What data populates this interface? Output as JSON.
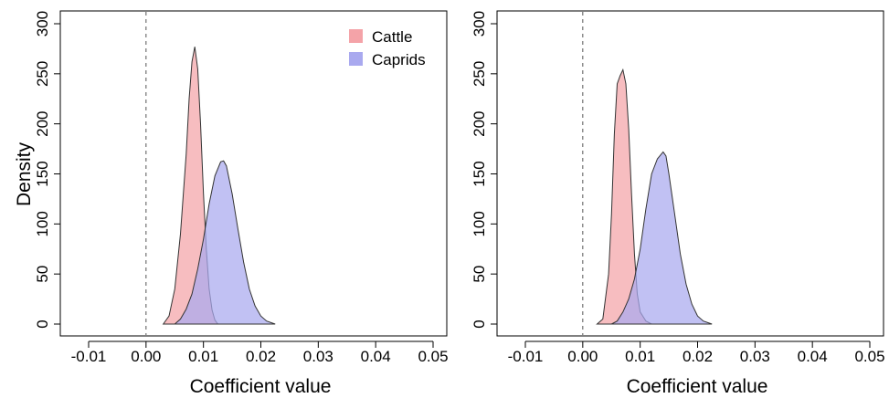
{
  "chart_data": [
    {
      "type": "area",
      "subtype": "density",
      "title": "",
      "xlabel": "Coefficient value",
      "ylabel": "Density",
      "xlim": [
        -0.01,
        0.05
      ],
      "ylim": [
        0,
        300
      ],
      "xticks": [
        "-0.01",
        "0.00",
        "0.01",
        "0.02",
        "0.03",
        "0.04",
        "0.05"
      ],
      "yticks": [
        "0",
        "50",
        "100",
        "150",
        "200",
        "250",
        "300"
      ],
      "reference_line": {
        "x": 0,
        "style": "dashed"
      },
      "grid": false,
      "legend": {
        "position": "top-right",
        "entries": [
          "Cattle",
          "Caprids"
        ]
      },
      "series": [
        {
          "name": "Cattle",
          "color": "#f4a3a8",
          "x": [
            0.003,
            0.004,
            0.005,
            0.006,
            0.007,
            0.0075,
            0.008,
            0.0085,
            0.009,
            0.0095,
            0.01,
            0.0105,
            0.011,
            0.0115,
            0.012,
            0.0125
          ],
          "y": [
            0,
            8,
            35,
            90,
            170,
            225,
            262,
            277,
            255,
            200,
            130,
            75,
            35,
            14,
            4,
            0
          ]
        },
        {
          "name": "Caprids",
          "color": "#a9a9ef",
          "x": [
            0.005,
            0.006,
            0.007,
            0.008,
            0.009,
            0.01,
            0.011,
            0.012,
            0.013,
            0.0135,
            0.014,
            0.015,
            0.016,
            0.017,
            0.018,
            0.019,
            0.02,
            0.021,
            0.0225
          ],
          "y": [
            0,
            5,
            15,
            30,
            55,
            85,
            120,
            148,
            162,
            163,
            158,
            130,
            95,
            62,
            35,
            18,
            8,
            3,
            0
          ]
        }
      ]
    },
    {
      "type": "area",
      "subtype": "density",
      "title": "",
      "xlabel": "Coefficient value",
      "ylabel": "",
      "xlim": [
        -0.01,
        0.05
      ],
      "ylim": [
        0,
        300
      ],
      "xticks": [
        "-0.01",
        "0.00",
        "0.01",
        "0.02",
        "0.03",
        "0.04",
        "0.05"
      ],
      "yticks": [
        "0",
        "50",
        "100",
        "150",
        "200",
        "250",
        "300"
      ],
      "reference_line": {
        "x": 0,
        "style": "dashed"
      },
      "grid": false,
      "legend": null,
      "series": [
        {
          "name": "Cattle",
          "color": "#f4a3a8",
          "x": [
            0.0025,
            0.0035,
            0.0045,
            0.005,
            0.0055,
            0.006,
            0.0065,
            0.007,
            0.0075,
            0.008,
            0.0085,
            0.009,
            0.0095,
            0.01,
            0.011,
            0.012
          ],
          "y": [
            0,
            5,
            50,
            110,
            190,
            240,
            248,
            254,
            240,
            195,
            130,
            70,
            30,
            12,
            3,
            0
          ]
        },
        {
          "name": "Caprids",
          "color": "#a9a9ef",
          "x": [
            0.005,
            0.006,
            0.007,
            0.008,
            0.009,
            0.01,
            0.011,
            0.012,
            0.013,
            0.014,
            0.0145,
            0.015,
            0.016,
            0.017,
            0.018,
            0.019,
            0.02,
            0.021,
            0.0225
          ],
          "y": [
            0,
            3,
            12,
            25,
            45,
            75,
            115,
            150,
            165,
            172,
            168,
            150,
            110,
            70,
            40,
            20,
            8,
            3,
            0
          ]
        }
      ]
    }
  ]
}
